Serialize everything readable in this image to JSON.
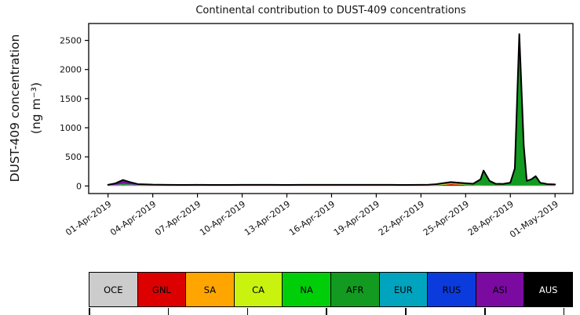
{
  "figure": {
    "title": "Continental contribution to DUST-409 concentrations",
    "ylabel_line1": "DUST-409 concentration",
    "ylabel_line2": "(ng m⁻³)"
  },
  "chart_data": {
    "type": "area",
    "stacked": true,
    "title": "Continental contribution to DUST-409 concentrations",
    "xlabel": "",
    "ylabel": "DUST-409 concentration (ng m⁻³)",
    "grid": false,
    "legend_position": "bottom",
    "x_units": "day offset from 01-Apr-2019",
    "xlim": [
      -1.3,
      31.2
    ],
    "ylim": [
      -130,
      2790
    ],
    "yticks": [
      0,
      500,
      1000,
      1500,
      2000,
      2500
    ],
    "xticks": {
      "offsets": [
        0,
        3,
        6,
        9,
        12,
        15,
        18,
        21,
        24,
        27,
        30
      ],
      "labels": [
        "01-Apr-2019",
        "04-Apr-2019",
        "07-Apr-2019",
        "10-Apr-2019",
        "13-Apr-2019",
        "16-Apr-2019",
        "19-Apr-2019",
        "22-Apr-2019",
        "25-Apr-2019",
        "28-Apr-2019",
        "01-May-2019"
      ]
    },
    "x": [
      0,
      0.5,
      1,
      1.5,
      2,
      3,
      4,
      5,
      6,
      7,
      8,
      9,
      10,
      11,
      12,
      13,
      14,
      15,
      16,
      17,
      18,
      19,
      20,
      21,
      21.5,
      22,
      22.5,
      23,
      23.5,
      24,
      24.5,
      25,
      25.2,
      25.6,
      26,
      26.5,
      27,
      27.3,
      27.6,
      27.9,
      28.1,
      28.4,
      28.7,
      29,
      29.5,
      30
    ],
    "series": [
      {
        "name": "OCE",
        "color": "#CCCCCC",
        "label_color": "#000000",
        "values": [
          3,
          3,
          3,
          3,
          3,
          3,
          3,
          3,
          3,
          3,
          3,
          3,
          3,
          3,
          3,
          3,
          3,
          3,
          3,
          3,
          3,
          3,
          3,
          3,
          3,
          3,
          3,
          3,
          3,
          3,
          3,
          3,
          3,
          3,
          3,
          3,
          3,
          3,
          3,
          3,
          3,
          3,
          3,
          3,
          3,
          3
        ]
      },
      {
        "name": "GNL",
        "color": "#DD0000",
        "label_color": "#000000",
        "values": [
          1,
          1,
          1,
          1,
          1,
          1,
          1,
          1,
          1,
          1,
          1,
          1,
          1,
          1,
          1,
          1,
          1,
          1,
          1,
          1,
          1,
          1,
          1,
          1,
          2,
          5,
          15,
          28,
          22,
          12,
          8,
          4,
          3,
          2,
          2,
          2,
          2,
          2,
          2,
          2,
          2,
          2,
          2,
          1,
          1,
          1
        ]
      },
      {
        "name": "SA",
        "color": "#FFA500",
        "label_color": "#000000",
        "values": [
          1,
          1,
          1,
          1,
          1,
          1,
          1,
          1,
          1,
          1,
          1,
          1,
          1,
          1,
          1,
          1,
          1,
          1,
          1,
          1,
          1,
          1,
          1,
          1,
          2,
          3,
          4,
          4,
          3,
          2,
          2,
          1,
          1,
          1,
          1,
          1,
          1,
          1,
          1,
          1,
          1,
          1,
          1,
          1,
          1,
          1
        ]
      },
      {
        "name": "CA",
        "color": "#C9F20E",
        "label_color": "#000000",
        "values": [
          1,
          1,
          1,
          1,
          1,
          1,
          1,
          1,
          1,
          1,
          1,
          1,
          1,
          1,
          1,
          1,
          1,
          1,
          1,
          1,
          1,
          1,
          1,
          1,
          1,
          2,
          4,
          5,
          4,
          3,
          2,
          1,
          1,
          1,
          1,
          1,
          1,
          1,
          1,
          1,
          1,
          1,
          1,
          1,
          1,
          1
        ]
      },
      {
        "name": "NA",
        "color": "#00CE08",
        "label_color": "#000000",
        "values": [
          3,
          6,
          12,
          8,
          4,
          3,
          3,
          3,
          3,
          3,
          3,
          4,
          5,
          4,
          3,
          3,
          3,
          4,
          5,
          5,
          4,
          3,
          3,
          3,
          3,
          4,
          6,
          8,
          7,
          5,
          4,
          3,
          3,
          3,
          3,
          3,
          3,
          4,
          5,
          4,
          3,
          3,
          4,
          3,
          3,
          3
        ]
      },
      {
        "name": "AFR",
        "color": "#129B20",
        "label_color": "#000000",
        "values": [
          2,
          4,
          15,
          10,
          5,
          4,
          3,
          2,
          3,
          2,
          2,
          2,
          2,
          2,
          2,
          4,
          3,
          2,
          2,
          2,
          2,
          3,
          2,
          3,
          4,
          6,
          10,
          12,
          10,
          15,
          12,
          95,
          245,
          70,
          22,
          18,
          40,
          275,
          2560,
          660,
          70,
          95,
          150,
          40,
          15,
          10
        ]
      },
      {
        "name": "EUR",
        "color": "#00A4BE",
        "label_color": "#000000",
        "values": [
          1,
          1,
          1,
          1,
          1,
          1,
          1,
          1,
          1,
          1,
          1,
          1,
          1,
          1,
          1,
          1,
          1,
          1,
          1,
          1,
          1,
          1,
          1,
          1,
          1,
          1,
          1,
          1,
          1,
          1,
          1,
          1,
          1,
          1,
          1,
          1,
          1,
          1,
          1,
          1,
          1,
          1,
          1,
          1,
          1,
          1
        ]
      },
      {
        "name": "RUS",
        "color": "#0B3BDC",
        "label_color": "#000000",
        "values": [
          3,
          3,
          3,
          3,
          3,
          3,
          3,
          3,
          3,
          3,
          3,
          3,
          3,
          3,
          3,
          3,
          3,
          3,
          3,
          3,
          3,
          3,
          3,
          3,
          3,
          3,
          3,
          3,
          3,
          3,
          3,
          3,
          5,
          4,
          3,
          3,
          3,
          10,
          30,
          15,
          4,
          4,
          4,
          3,
          3,
          3
        ]
      },
      {
        "name": "ASI",
        "color": "#7B0AA0",
        "label_color": "#000000",
        "values": [
          4,
          25,
          65,
          35,
          12,
          5,
          3,
          2,
          2,
          2,
          2,
          2,
          2,
          2,
          2,
          2,
          2,
          2,
          2,
          2,
          2,
          2,
          2,
          2,
          2,
          2,
          2,
          2,
          2,
          2,
          2,
          2,
          2,
          2,
          2,
          2,
          2,
          3,
          5,
          3,
          2,
          2,
          2,
          2,
          2,
          2
        ]
      },
      {
        "name": "AUS",
        "color": "#000000",
        "label_color": "#FFFFFF",
        "values": [
          1,
          1,
          1,
          1,
          1,
          1,
          1,
          1,
          1,
          1,
          1,
          1,
          1,
          1,
          1,
          1,
          1,
          1,
          1,
          1,
          1,
          1,
          1,
          1,
          1,
          1,
          1,
          1,
          1,
          1,
          1,
          1,
          1,
          1,
          1,
          1,
          1,
          1,
          1,
          1,
          1,
          1,
          1,
          1,
          1,
          1
        ]
      }
    ]
  }
}
